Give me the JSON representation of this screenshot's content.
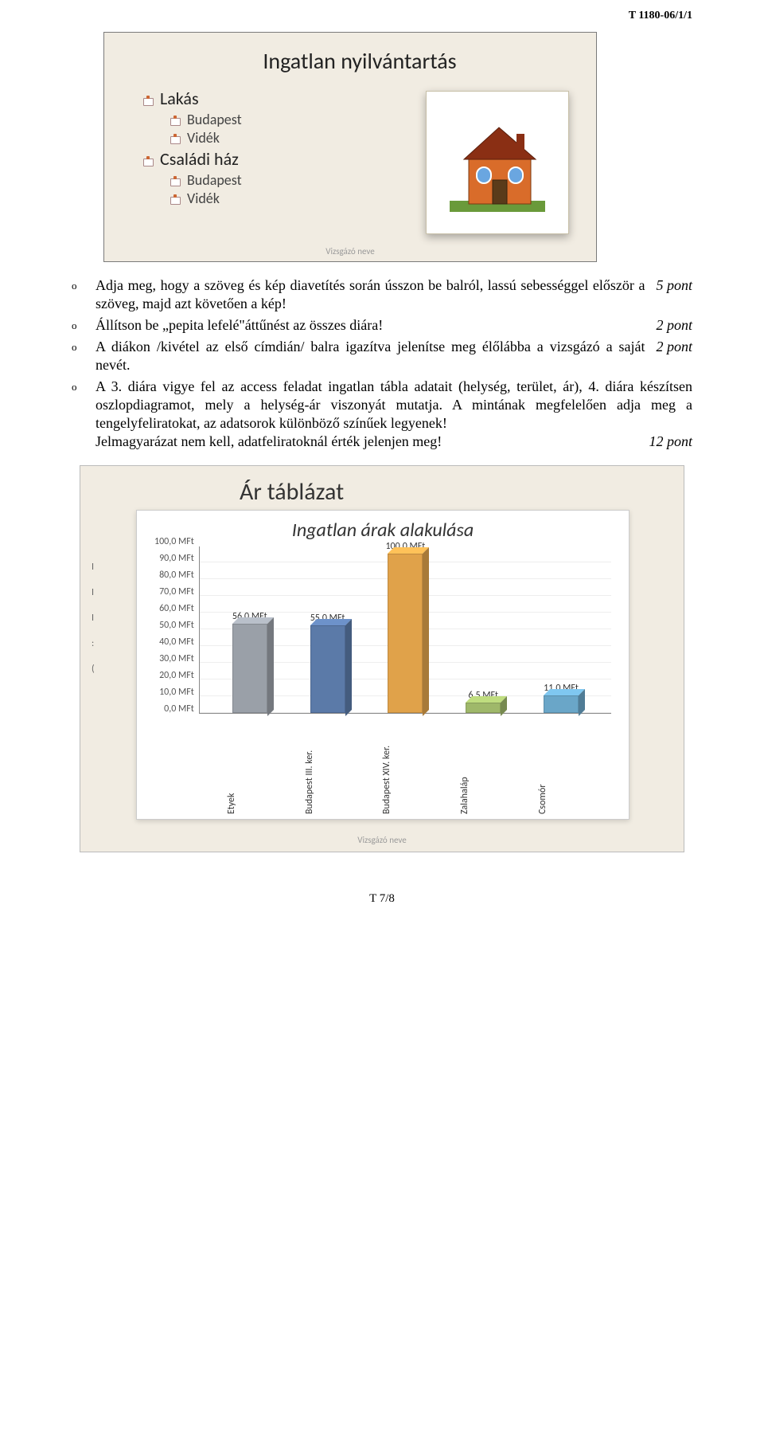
{
  "header": {
    "code": "T 1180-06/1/1"
  },
  "slide1": {
    "title": "Ingatlan nyilvántartás",
    "tree": [
      {
        "level": 1,
        "text": "Lakás"
      },
      {
        "level": 2,
        "text": "Budapest"
      },
      {
        "level": 2,
        "text": "Vidék"
      },
      {
        "level": 1,
        "text": "Családi ház"
      },
      {
        "level": 2,
        "text": "Budapest"
      },
      {
        "level": 2,
        "text": "Vidék"
      }
    ],
    "footer": "Vizsgázó neve",
    "background_color": "#f1ece2",
    "house_svg": {
      "wall": "#d96c2a",
      "roof": "#8a2f14",
      "window": "#6aa6e0",
      "door": "#5a3b1a",
      "grass": "#6a9a3a"
    }
  },
  "bullets": [
    {
      "text": "Adja meg, hogy a szöveg és kép diavetítés során ússzon be balról, lassú sebességgel először a szöveg, majd azt követően a kép!",
      "points": "5 pont",
      "layout": "right"
    },
    {
      "text": "Állítson be „pepita lefelé\"áttűnést az összes diára!",
      "points": "2 pont",
      "layout": "right"
    },
    {
      "text": "A diákon /kivétel az első címdián/ balra igazítva jelenítse meg élőlábba a vizsgázó a saját nevét.",
      "points": "2 pont",
      "layout": "right"
    },
    {
      "text": "A 3. diára vigye fel az access feladat ingatlan tábla adatait (helység, terület, ár), 4. diára készítsen oszlopdiagramot, mely a helység-ár viszonyát mutatja. A mintának megfelelően adja meg a tengelyfeliratokat, az adatsorok különböző színűek legyenek!",
      "text2": "Jelmagyarázat nem kell, adatfeliratoknál érték jelenjen meg!",
      "points": "12 pont",
      "layout": "split"
    }
  ],
  "slide2": {
    "outer_title": "Ár táblázat",
    "left_stubs": [
      "I",
      "I",
      "I",
      ":",
      "("
    ],
    "footer": "Vizsgázó neve",
    "chart": {
      "type": "bar",
      "title": "Ingatlan árak alakulása",
      "ylim": [
        0,
        100
      ],
      "ytick_step": 10,
      "y_unit": "MFt",
      "y_ticks": [
        "0,0 MFt",
        "10,0 MFt",
        "20,0 MFt",
        "30,0 MFt",
        "40,0 MFt",
        "50,0 MFt",
        "60,0 MFt",
        "70,0 MFt",
        "80,0 MFt",
        "90,0 MFt",
        "100,0 MFt"
      ],
      "categories": [
        "Etyek",
        "Budapest III. ker.",
        "Budapest XIV. ker.",
        "Zalahaláp",
        "Csomór"
      ],
      "values": [
        56.0,
        55.0,
        100.0,
        6.5,
        11.0
      ],
      "value_labels": [
        "56,0 MFt",
        "55,0 MFt",
        "100,0 MFt",
        "6,5 MFt",
        "11,0 MFt"
      ],
      "bar_colors": [
        "#9aa0a8",
        "#5b7aa8",
        "#e0a24a",
        "#9fb86a",
        "#6aa6c8"
      ],
      "background_color": "#ffffff",
      "grid_color": "#eeeeee",
      "title_fontsize": 24,
      "label_fontsize": 12
    }
  },
  "footer": {
    "page": "T 7/8"
  }
}
